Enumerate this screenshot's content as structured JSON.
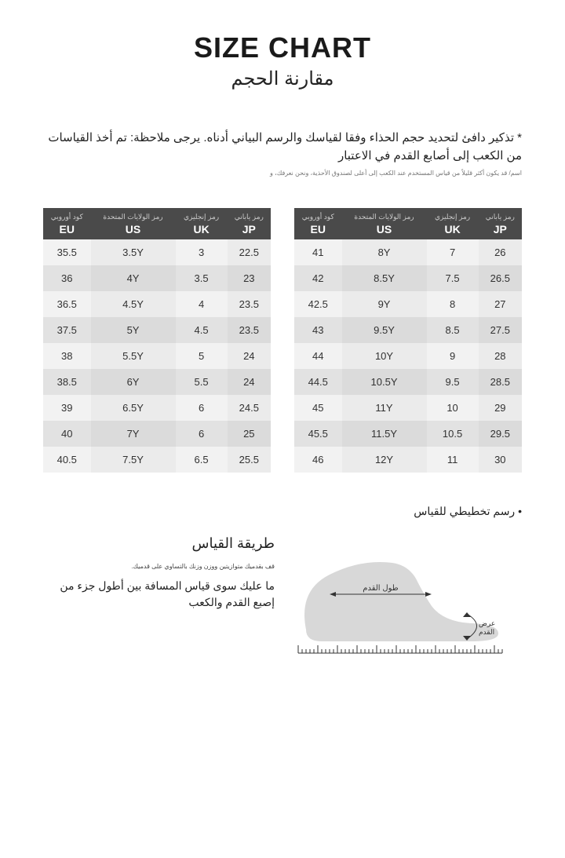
{
  "title": {
    "main": "SIZE CHART",
    "sub": "مقارنة الحجم"
  },
  "note": {
    "main": "* تذكير دافئ لتحديد حجم الحذاء وفقا لقياسك والرسم البياني أدناه. يرجى ملاحظة: تم أخذ القياسات من الكعب إلى أصابع القدم في الاعتبار",
    "fine": "اسم/ قد يكون أكثر قليلاً من قياس المستخدم عند الكعب إلى أعلى لصندوق الأحذية، ونحن نعرفك، و"
  },
  "columns": [
    {
      "ar": "كود\nأوروبي",
      "code": "EU"
    },
    {
      "ar": "رمز\nالولايات\nالمتحدة",
      "code": "US"
    },
    {
      "ar": "رمز\nإنجليزي",
      "code": "UK"
    },
    {
      "ar": "رمز ياباني",
      "code": "JP"
    }
  ],
  "table_left": [
    [
      "35.5",
      "3.5Y",
      "3",
      "22.5"
    ],
    [
      "36",
      "4Y",
      "3.5",
      "23"
    ],
    [
      "36.5",
      "4.5Y",
      "4",
      "23.5"
    ],
    [
      "37.5",
      "5Y",
      "4.5",
      "23.5"
    ],
    [
      "38",
      "5.5Y",
      "5",
      "24"
    ],
    [
      "38.5",
      "6Y",
      "5.5",
      "24"
    ],
    [
      "39",
      "6.5Y",
      "6",
      "24.5"
    ],
    [
      "40",
      "7Y",
      "6",
      "25"
    ],
    [
      "40.5",
      "7.5Y",
      "6.5",
      "25.5"
    ]
  ],
  "table_right": [
    [
      "41",
      "8Y",
      "7",
      "26"
    ],
    [
      "42",
      "8.5Y",
      "7.5",
      "26.5"
    ],
    [
      "42.5",
      "9Y",
      "8",
      "27"
    ],
    [
      "43",
      "9.5Y",
      "8.5",
      "27.5"
    ],
    [
      "44",
      "10Y",
      "9",
      "28"
    ],
    [
      "44.5",
      "10.5Y",
      "9.5",
      "28.5"
    ],
    [
      "45",
      "11Y",
      "10",
      "29"
    ],
    [
      "45.5",
      "11.5Y",
      "10.5",
      "29.5"
    ],
    [
      "46",
      "12Y",
      "11",
      "30"
    ]
  ],
  "measure": {
    "title": "طريقة القياس",
    "step1": "قف بقدميك متوازيتين ووزن وزنك بالتساوي على قدميك.",
    "step2": "ما عليك سوى قياس المسافة بين أطول جزء من إصبع القدم والكعب"
  },
  "diagram": {
    "caption": "رسم تخطيطي\nللقياس",
    "foot_length": "طول القدم",
    "foot_width": "عرض\nالقدم"
  },
  "style": {
    "header_bg": "#4a4a4a",
    "row_light": "#f2f2f2",
    "row_dark": "#e2e2e2",
    "text_color": "#222222"
  }
}
